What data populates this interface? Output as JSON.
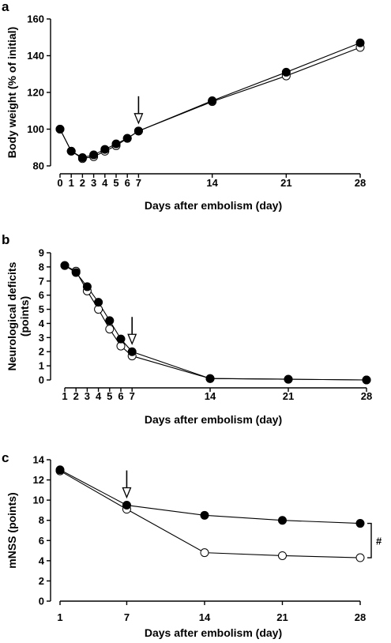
{
  "chart_data": [
    {
      "panel": "a",
      "type": "line",
      "xlabel": "Days after embolism (day)",
      "ylabel": "Body weight (% of initial)",
      "x": [
        0,
        1,
        2,
        3,
        4,
        5,
        6,
        7,
        14,
        21,
        28
      ],
      "xticks": [
        0,
        1,
        2,
        3,
        4,
        5,
        6,
        7,
        14,
        21,
        28
      ],
      "yticks": [
        80,
        100,
        120,
        140,
        160
      ],
      "ylim": [
        80,
        160
      ],
      "series": [
        {
          "marker": "filled",
          "values": [
            100,
            88,
            84.5,
            86,
            89,
            92,
            95,
            99,
            115.5,
            131,
            147
          ]
        },
        {
          "marker": "open",
          "values": [
            100,
            88,
            84,
            85,
            88,
            91,
            95,
            99,
            115,
            129,
            144.5
          ]
        }
      ],
      "arrow_at": 7,
      "grid": false
    },
    {
      "panel": "b",
      "type": "line",
      "xlabel": "Days after embolism (day)",
      "ylabel": "Neurological deficits (points)",
      "x": [
        1,
        2,
        3,
        4,
        5,
        6,
        7,
        14,
        21,
        28
      ],
      "xticks": [
        1,
        2,
        3,
        4,
        5,
        6,
        7,
        14,
        21,
        28
      ],
      "yticks": [
        0,
        1,
        2,
        3,
        4,
        5,
        6,
        7,
        8,
        9
      ],
      "ylim": [
        0,
        9
      ],
      "series": [
        {
          "marker": "filled",
          "values": [
            8.1,
            7.6,
            6.6,
            5.5,
            4.2,
            2.9,
            2.0,
            0.1,
            0.05,
            0
          ]
        },
        {
          "marker": "open",
          "values": [
            8.1,
            7.7,
            6.3,
            5.0,
            3.6,
            2.4,
            1.7,
            0.1,
            0.05,
            0
          ]
        }
      ],
      "arrow_at": 7,
      "grid": false
    },
    {
      "panel": "c",
      "type": "line",
      "xlabel": "Days after embolism (day)",
      "ylabel": "mNSS (points)",
      "x": [
        1,
        7,
        14,
        21,
        28
      ],
      "xticks": [
        1,
        7,
        14,
        21,
        28
      ],
      "yticks": [
        0,
        2,
        4,
        6,
        8,
        10,
        12,
        14
      ],
      "ylim": [
        0,
        14
      ],
      "series": [
        {
          "marker": "filled",
          "values": [
            13.0,
            9.5,
            8.5,
            8.0,
            7.7
          ]
        },
        {
          "marker": "open",
          "values": [
            12.9,
            9.1,
            4.8,
            4.5,
            4.3
          ]
        }
      ],
      "arrow_at": 7,
      "significance": "#",
      "grid": false
    }
  ]
}
